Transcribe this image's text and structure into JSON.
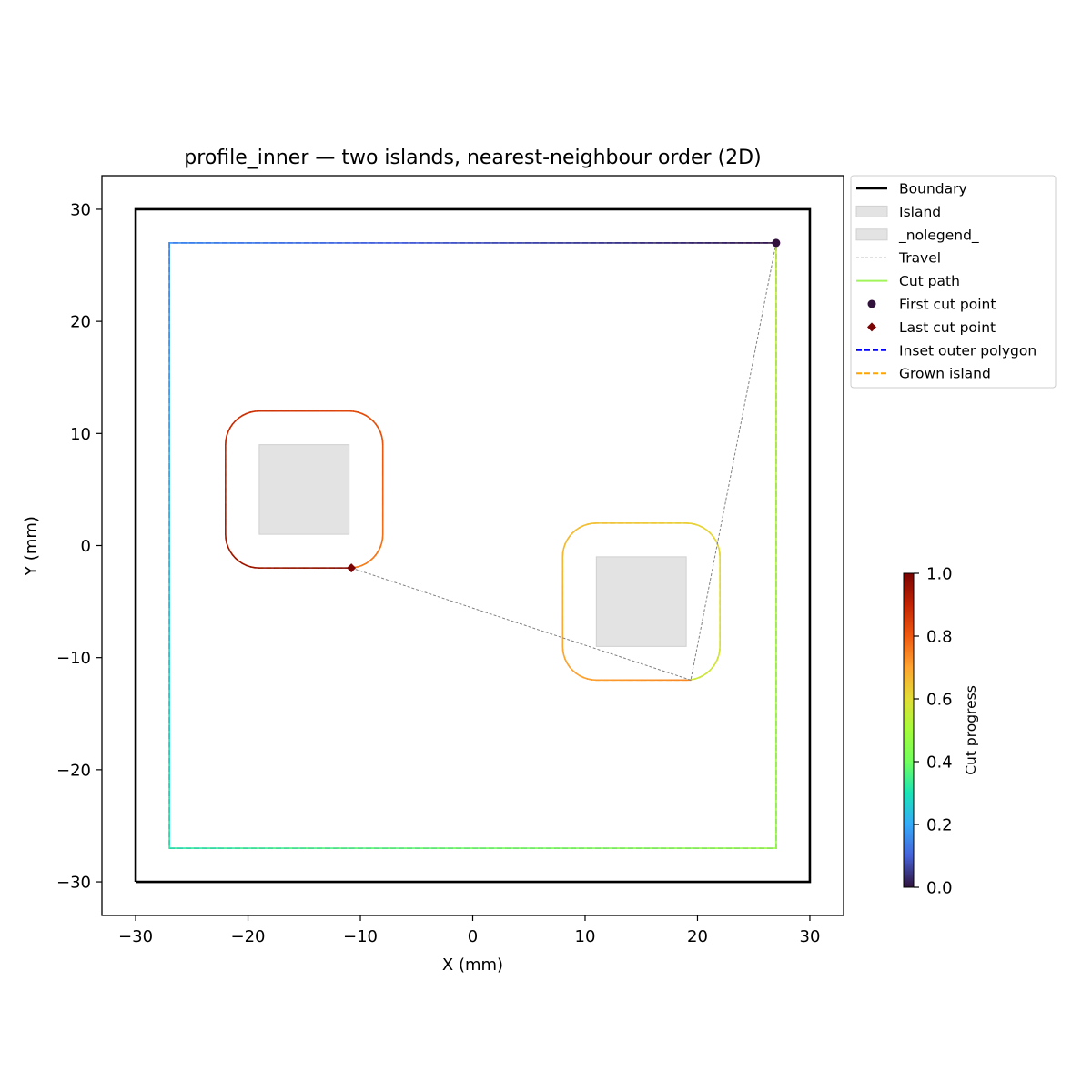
{
  "chart_data": {
    "type": "line",
    "title": "profile_inner — two islands, nearest-neighbour order (2D)",
    "xlabel": "X (mm)",
    "ylabel": "Y (mm)",
    "xlim": [
      -33,
      33
    ],
    "ylim": [
      -33,
      33
    ],
    "xticks": [
      -30,
      -20,
      -10,
      0,
      10,
      20,
      30
    ],
    "yticks": [
      -30,
      -20,
      -10,
      0,
      10,
      20,
      30
    ],
    "xtick_labels": [
      "−30",
      "−20",
      "−10",
      "0",
      "10",
      "20",
      "30"
    ],
    "ytick_labels": [
      "−30",
      "−20",
      "−10",
      "0",
      "10",
      "20",
      "30"
    ],
    "grid": false,
    "legend_position": "outside upper right",
    "boundary": {
      "name": "Boundary",
      "x": [
        -30,
        30,
        30,
        -30,
        -30
      ],
      "y": [
        -30,
        -30,
        30,
        30,
        -30
      ],
      "color": "#000000"
    },
    "islands": [
      {
        "name": "Island",
        "x": [
          -19,
          -11,
          -11,
          -19
        ],
        "y": [
          1,
          1,
          9,
          9
        ],
        "color": "#e3e3e3"
      },
      {
        "name": "_nolegend_",
        "x": [
          11,
          19,
          19,
          11
        ],
        "y": [
          -9,
          -9,
          -1,
          -1
        ],
        "color": "#e3e3e3"
      }
    ],
    "inset_outer_polygon": {
      "name": "Inset outer polygon",
      "x": [
        -27,
        27,
        27,
        -27,
        -27
      ],
      "y": [
        -27,
        -27,
        27,
        27,
        -27
      ],
      "color": "#0000ff"
    },
    "grown_islands": [
      {
        "name": "Grown island",
        "center": [
          -15,
          5
        ],
        "half_size": 7,
        "corner_radius": 3,
        "color": "#ffa500"
      },
      {
        "name": "_nolegend_",
        "center": [
          15,
          -5
        ],
        "half_size": 7,
        "corner_radius": 3,
        "color": "#ffa500"
      }
    ],
    "travel": {
      "name": "Travel",
      "segments": [
        [
          [
            27,
            27
          ],
          [
            19.4,
            -12
          ]
        ],
        [
          [
            19.4,
            -12
          ],
          [
            -10.8,
            -2
          ]
        ]
      ],
      "color": "#808080"
    },
    "cut_path": {
      "name": "Cut path",
      "color": "#a2f45b",
      "segments": [
        {
          "points": [
            [
              27,
              27
            ],
            [
              -27,
              27
            ],
            [
              -27,
              -27
            ],
            [
              27,
              -27
            ],
            [
              27,
              27
            ]
          ],
          "progress": [
            0.0,
            0.16,
            0.32,
            0.48,
            0.55
          ]
        },
        {
          "loop_center": [
            15,
            -5
          ],
          "start": [
            19.4,
            -12
          ],
          "progress": [
            0.56,
            0.74
          ]
        },
        {
          "loop_center": [
            -15,
            5
          ],
          "start": [
            -10.8,
            -2
          ],
          "progress": [
            0.75,
            1.0
          ]
        }
      ]
    },
    "first_cut_point": {
      "name": "First cut point",
      "x": 27,
      "y": 27,
      "color": "#30123b"
    },
    "last_cut_point": {
      "name": "Last cut point",
      "x": -10.8,
      "y": -2,
      "color": "#7a0403"
    },
    "legend": [
      {
        "label": "Boundary",
        "kind": "line",
        "color": "#000000"
      },
      {
        "label": "Island",
        "kind": "patch",
        "color": "#e3e3e3"
      },
      {
        "label": "_nolegend_",
        "kind": "patch",
        "color": "#e3e3e3"
      },
      {
        "label": "Travel",
        "kind": "dotted",
        "color": "#808080"
      },
      {
        "label": "Cut path",
        "kind": "line",
        "color": "#a2f45b"
      },
      {
        "label": "First cut point",
        "kind": "circle",
        "color": "#30123b"
      },
      {
        "label": "Last cut point",
        "kind": "diamond",
        "color": "#7a0403"
      },
      {
        "label": "Inset outer polygon",
        "kind": "dashed",
        "color": "#0000ff"
      },
      {
        "label": "Grown island",
        "kind": "dashed",
        "color": "#ffa500"
      }
    ],
    "colorbar": {
      "label": "Cut progress",
      "colormap": "turbo",
      "range": [
        0.0,
        1.0
      ],
      "ticks": [
        0.0,
        0.2,
        0.4,
        0.6,
        0.8,
        1.0
      ],
      "tick_labels": [
        "0.0",
        "0.2",
        "0.4",
        "0.6",
        "0.8",
        "1.0"
      ]
    }
  }
}
